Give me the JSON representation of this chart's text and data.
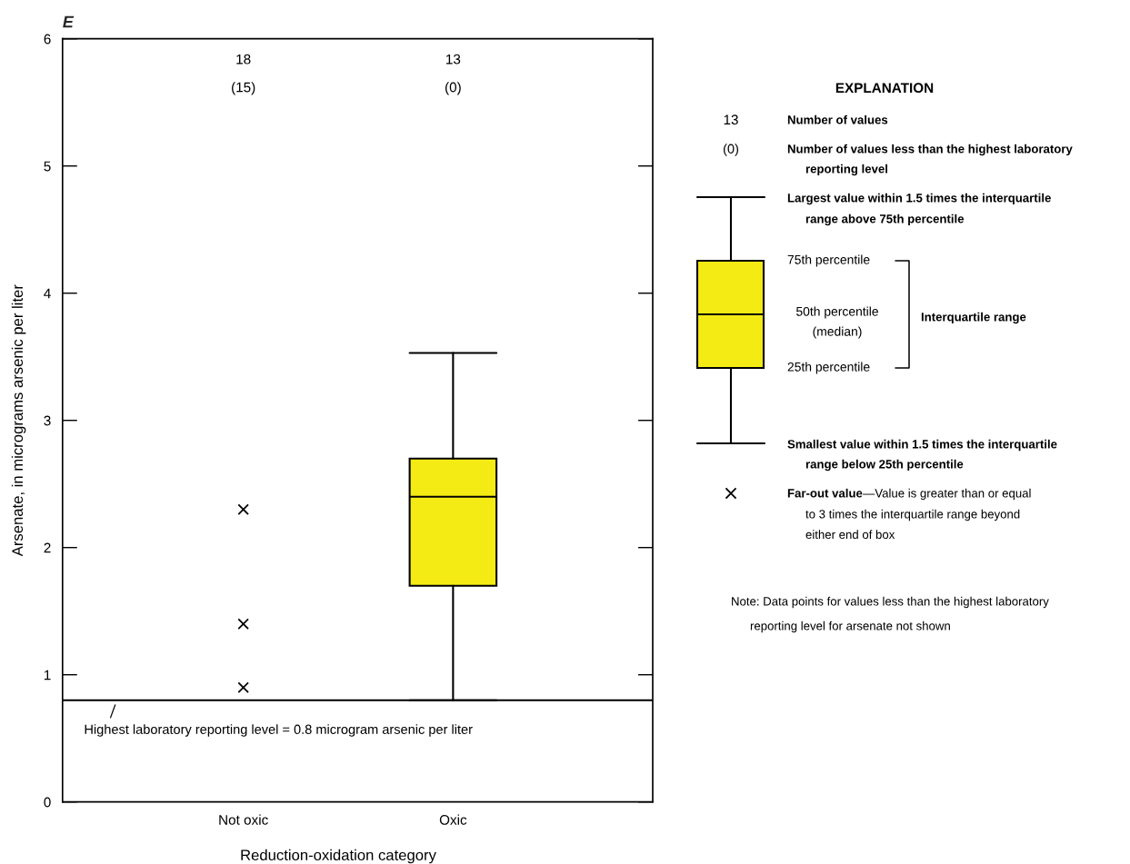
{
  "chart_data": {
    "type": "box",
    "title": "E",
    "xlabel": "Reduction-oxidation category",
    "ylabel": "Arsenate, in micrograms arsenic per liter",
    "categories": [
      "Not oxic",
      "Oxic"
    ],
    "ylim": [
      0,
      6
    ],
    "yticks": [
      0,
      1,
      2,
      3,
      4,
      5,
      6
    ],
    "marker": "cross",
    "series": [
      {
        "type": "box",
        "color": "#f5eb14",
        "boxes": [
          null,
          {
            "low": 0.8,
            "q1": 1.7,
            "median": 2.4,
            "q3": 2.7,
            "high": 3.53
          }
        ]
      },
      {
        "type": "scatter",
        "color": "#000000",
        "x": [
          "Not oxic",
          "Not oxic",
          "Not oxic"
        ],
        "values": [
          2.3,
          1.4,
          0.9
        ]
      }
    ],
    "ref_lines": [
      {
        "axis": "y",
        "value": 0.8,
        "label": "Highest laboratory reporting level = 0.8 microgram arsenic per liter",
        "color": "#000000",
        "line_style": "solid"
      }
    ],
    "annotations": [
      "18",
      "(15)",
      "13",
      "(0)",
      "EXPLANATION",
      "13",
      "Number of values",
      "(0)",
      "Number of values less than the highest laboratory\nreporting level",
      "Largest value within 1.5 times the interquartile\nrange above 75th percentile",
      "75th percentile",
      "50th percentile\n(median)",
      "Interquartile range",
      "25th percentile",
      "Smallest value within 1.5 times the interquartile\nrange below 25th percentile",
      "Far-out value",
      "—Value is greater than or equal",
      "to 3 times the interquartile range beyond\neither end of box",
      "Note: Data points for values less than the highest laboratory\nreporting level for arsenate not shown"
    ]
  }
}
